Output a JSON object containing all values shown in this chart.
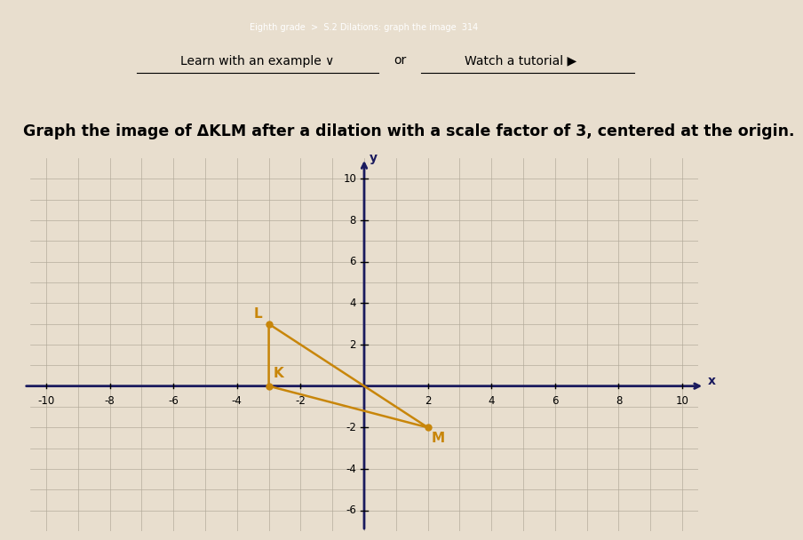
{
  "header_text1": "Learn with an example ∨",
  "header_text2": "or",
  "header_text3": "Watch a tutorial ▶",
  "title": "Graph the image of ΔKLM after a dilation with a scale factor of 3, centered at the origin.",
  "title_fontsize": 12.5,
  "xlim": [
    -10.5,
    10.5
  ],
  "ylim": [
    -7,
    11
  ],
  "triangle_K": [
    -3,
    0
  ],
  "triangle_L": [
    -3,
    3
  ],
  "triangle_M": [
    2,
    -2
  ],
  "triangle_color": "#c8860a",
  "triangle_linewidth": 1.8,
  "label_K": "K",
  "label_L": "L",
  "label_M": "M",
  "label_fontsize": 11,
  "label_color": "#c8860a",
  "background_color": "#e8dece",
  "grid_color": "#b0a898",
  "axis_color": "#1a1a5e",
  "font_color": "#000000",
  "header_bg": "#d8d0c0",
  "webpage_top_color": "#2a2a5a"
}
